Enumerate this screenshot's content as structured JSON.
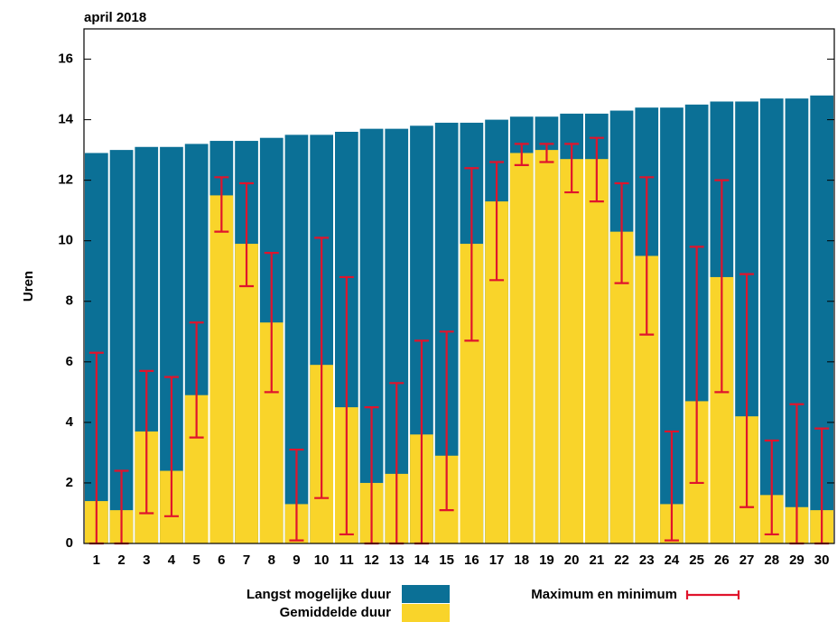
{
  "chart_data": {
    "type": "bar",
    "title": "april 2018",
    "y_label": "Uren",
    "categories": [
      "1",
      "2",
      "3",
      "4",
      "5",
      "6",
      "7",
      "8",
      "9",
      "10",
      "11",
      "12",
      "13",
      "14",
      "15",
      "16",
      "17",
      "18",
      "19",
      "20",
      "21",
      "22",
      "23",
      "24",
      "25",
      "26",
      "27",
      "28",
      "29",
      "30"
    ],
    "series": [
      {
        "name": "Langst mogelijke duur",
        "color": "#0b7096",
        "values": [
          12.9,
          13.0,
          13.1,
          13.1,
          13.2,
          13.3,
          13.3,
          13.4,
          13.5,
          13.5,
          13.6,
          13.7,
          13.7,
          13.8,
          13.9,
          13.9,
          14.0,
          14.1,
          14.1,
          14.2,
          14.2,
          14.3,
          14.4,
          14.4,
          14.5,
          14.6,
          14.6,
          14.7,
          14.7,
          14.8
        ]
      },
      {
        "name": "Gemiddelde duur",
        "color": "#f9d42a",
        "values": [
          1.4,
          1.1,
          3.7,
          2.4,
          4.9,
          11.5,
          9.9,
          7.3,
          1.3,
          5.9,
          4.5,
          2.0,
          2.3,
          3.6,
          2.9,
          9.9,
          11.3,
          12.9,
          13.0,
          12.7,
          12.7,
          10.3,
          9.5,
          1.3,
          4.7,
          8.8,
          4.2,
          1.6,
          1.2,
          1.1
        ]
      },
      {
        "name": "Maximum en minimum",
        "color": "#e0142c",
        "max": [
          6.3,
          2.4,
          5.7,
          5.5,
          7.3,
          12.1,
          11.9,
          9.6,
          3.1,
          10.1,
          8.8,
          4.5,
          5.3,
          6.7,
          7.0,
          12.4,
          12.6,
          13.2,
          13.2,
          13.2,
          13.4,
          11.9,
          12.1,
          3.7,
          9.8,
          12.0,
          8.9,
          3.4,
          4.6,
          3.8
        ],
        "min": [
          0,
          0,
          1.0,
          0.9,
          3.5,
          10.3,
          8.5,
          5.0,
          0.1,
          1.5,
          0.3,
          0,
          0,
          0,
          1.1,
          6.7,
          8.7,
          12.5,
          12.6,
          11.6,
          11.3,
          8.6,
          6.9,
          0.1,
          2.0,
          5.0,
          1.2,
          0.3,
          0,
          0
        ]
      }
    ],
    "ylim": [
      0,
      17
    ],
    "yticks": [
      0,
      2,
      4,
      6,
      8,
      10,
      12,
      14,
      16
    ],
    "grid": false
  }
}
